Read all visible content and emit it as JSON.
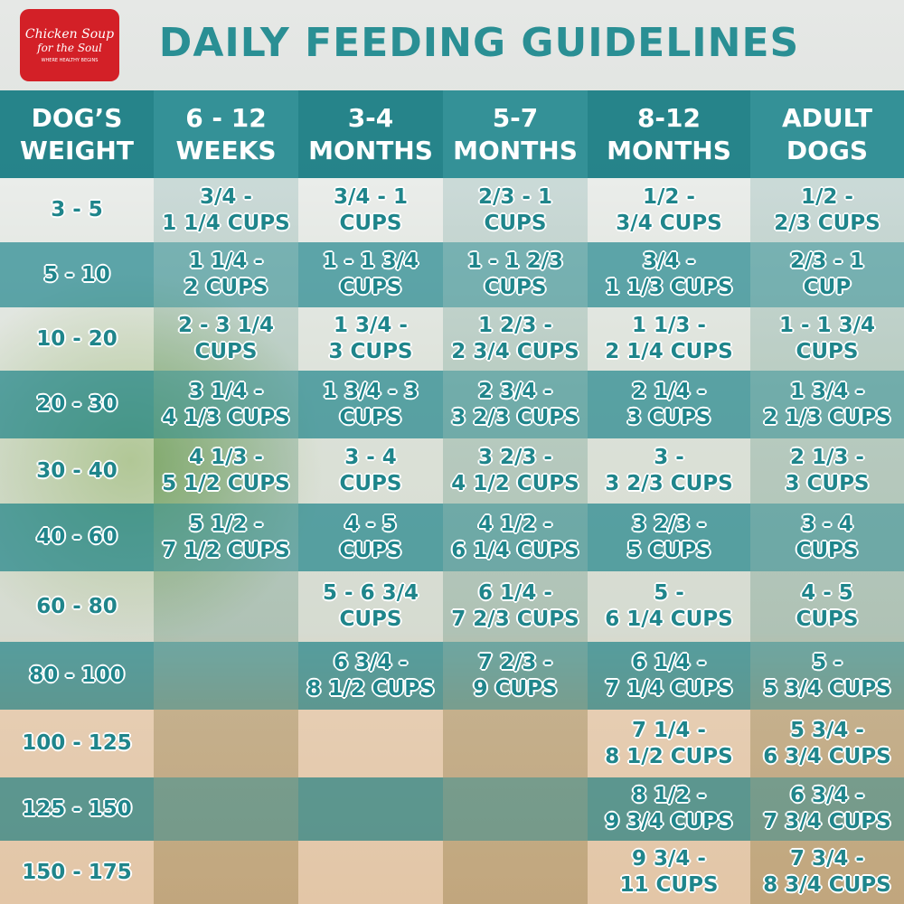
{
  "logo": {
    "line1": "Chicken Soup",
    "line2": "for the Soul",
    "tagline": "WHERE HEALTHY BEGINS"
  },
  "header": {
    "title": "DAILY FEEDING GUIDELINES"
  },
  "table": {
    "columns": [
      [
        "DOG’S",
        "WEIGHT"
      ],
      [
        "6 - 12",
        "WEEKS"
      ],
      [
        "3-4",
        "MONTHS"
      ],
      [
        "5-7",
        "MONTHS"
      ],
      [
        "8-12",
        "MONTHS"
      ],
      [
        "ADULT",
        "DOGS"
      ]
    ],
    "rows": [
      [
        "3 - 5",
        [
          "3/4 -",
          "1 1/4 CUPS"
        ],
        [
          "3/4 - 1",
          "CUPS"
        ],
        [
          "2/3 - 1",
          "CUPS"
        ],
        [
          "1/2 -",
          "3/4 CUPS"
        ],
        [
          "1/2 -",
          "2/3 CUPS"
        ]
      ],
      [
        "5 - 10",
        [
          "1 1/4 -",
          "2 CUPS"
        ],
        [
          "1 - 1 3/4",
          "CUPS"
        ],
        [
          "1 - 1 2/3",
          "CUPS"
        ],
        [
          "3/4 -",
          "1 1/3 CUPS"
        ],
        [
          "2/3 - 1",
          "CUP"
        ]
      ],
      [
        "10 - 20",
        [
          "2 - 3 1/4",
          "CUPS"
        ],
        [
          "1 3/4 -",
          "3 CUPS"
        ],
        [
          "1 2/3 -",
          "2 3/4 CUPS"
        ],
        [
          "1 1/3 -",
          "2 1/4 CUPS"
        ],
        [
          "1 - 1 3/4",
          "CUPS"
        ]
      ],
      [
        "20 - 30",
        [
          "3 1/4 -",
          "4 1/3 CUPS"
        ],
        [
          "1 3/4 - 3",
          "CUPS"
        ],
        [
          "2 3/4 -",
          "3 2/3 CUPS"
        ],
        [
          "2 1/4 -",
          "3 CUPS"
        ],
        [
          "1 3/4 -",
          "2 1/3 CUPS"
        ]
      ],
      [
        "30 - 40",
        [
          "4 1/3 -",
          "5 1/2 CUPS"
        ],
        [
          "3 - 4",
          "CUPS"
        ],
        [
          "3 2/3 -",
          "4 1/2 CUPS"
        ],
        [
          "3 -",
          "3 2/3 CUPS"
        ],
        [
          "2 1/3 -",
          "3 CUPS"
        ]
      ],
      [
        "40 - 60",
        [
          "5 1/2 -",
          "7 1/2 CUPS"
        ],
        [
          "4 - 5",
          "CUPS"
        ],
        [
          "4 1/2 -",
          "6 1/4 CUPS"
        ],
        [
          "3 2/3 -",
          "5 CUPS"
        ],
        [
          "3 - 4",
          "CUPS"
        ]
      ],
      [
        "60 - 80",
        null,
        [
          "5 - 6 3/4",
          "CUPS"
        ],
        [
          "6 1/4 -",
          "7 2/3 CUPS"
        ],
        [
          "5 -",
          "6 1/4 CUPS"
        ],
        [
          "4 - 5",
          "CUPS"
        ]
      ],
      [
        "80 - 100",
        null,
        [
          "6 3/4 -",
          "8 1/2 CUPS"
        ],
        [
          "7 2/3 -",
          "9 CUPS"
        ],
        [
          "6 1/4 -",
          "7 1/4 CUPS"
        ],
        [
          "5 -",
          "5 3/4 CUPS"
        ]
      ],
      [
        "100 - 125",
        null,
        null,
        null,
        [
          "7 1/4 -",
          "8 1/2 CUPS"
        ],
        [
          "5 3/4 -",
          "6 3/4 CUPS"
        ]
      ],
      [
        "125 - 150",
        null,
        null,
        null,
        [
          "8 1/2 -",
          "9 3/4 CUPS"
        ],
        [
          "6 3/4 -",
          "7 3/4 CUPS"
        ]
      ],
      [
        "150 - 175",
        null,
        null,
        null,
        [
          "9 3/4 -",
          "11 CUPS"
        ],
        [
          "7 3/4 -",
          "8 3/4 CUPS"
        ]
      ]
    ]
  }
}
